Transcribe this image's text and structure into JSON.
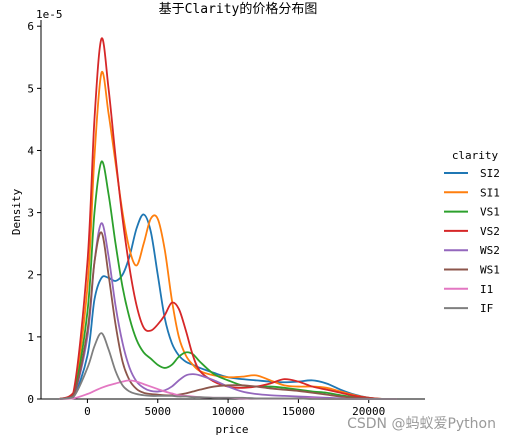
{
  "chart_data": {
    "type": "line",
    "title": "基于Clarity的价格分布图",
    "xlabel": "price",
    "ylabel": "Density",
    "y_scale_label": "1e-5",
    "x_ticks": [
      0,
      5000,
      10000,
      15000,
      20000
    ],
    "y_ticks": [
      0,
      1,
      2,
      3,
      4,
      5,
      6
    ],
    "xlim": [
      -3300,
      24000
    ],
    "ylim": [
      0,
      6.1
    ],
    "legend_title": "clarity",
    "legend_position": "right",
    "grid": false,
    "x": [
      -2000,
      -1000,
      0,
      500,
      1000,
      1500,
      2000,
      2500,
      3000,
      3500,
      4000,
      4500,
      5000,
      5500,
      6000,
      6500,
      7000,
      7500,
      8000,
      9000,
      10000,
      11000,
      12000,
      13000,
      14000,
      15000,
      16000,
      17000,
      18000,
      19000,
      20000,
      21000,
      22000
    ],
    "series": [
      {
        "name": "SI2",
        "color": "#1f77b4",
        "values": [
          0,
          0.04,
          0.7,
          1.6,
          1.95,
          1.95,
          1.9,
          2.0,
          2.3,
          2.75,
          2.97,
          2.7,
          2.0,
          1.3,
          0.9,
          0.7,
          0.6,
          0.55,
          0.5,
          0.42,
          0.35,
          0.32,
          0.3,
          0.28,
          0.27,
          0.28,
          0.3,
          0.25,
          0.15,
          0.07,
          0.02,
          0,
          0
        ]
      },
      {
        "name": "SI1",
        "color": "#ff7f0e",
        "values": [
          0,
          0.08,
          1.8,
          3.9,
          5.25,
          4.6,
          3.8,
          3.0,
          2.4,
          2.15,
          2.5,
          2.9,
          2.9,
          2.4,
          1.6,
          1.0,
          0.7,
          0.55,
          0.45,
          0.38,
          0.35,
          0.36,
          0.38,
          0.3,
          0.22,
          0.2,
          0.2,
          0.18,
          0.12,
          0.06,
          0.02,
          0,
          0
        ]
      },
      {
        "name": "VS1",
        "color": "#2ca02c",
        "values": [
          0,
          0.06,
          1.4,
          3.0,
          3.82,
          3.3,
          2.5,
          1.8,
          1.3,
          0.95,
          0.75,
          0.65,
          0.55,
          0.5,
          0.55,
          0.68,
          0.75,
          0.72,
          0.6,
          0.4,
          0.3,
          0.22,
          0.2,
          0.2,
          0.18,
          0.15,
          0.12,
          0.1,
          0.06,
          0.03,
          0.01,
          0,
          0
        ]
      },
      {
        "name": "VS2",
        "color": "#d62728",
        "values": [
          0,
          0.1,
          2.2,
          4.5,
          5.8,
          5.0,
          3.9,
          2.9,
          2.1,
          1.5,
          1.15,
          1.1,
          1.2,
          1.35,
          1.55,
          1.45,
          1.1,
          0.7,
          0.45,
          0.28,
          0.2,
          0.18,
          0.2,
          0.25,
          0.32,
          0.28,
          0.2,
          0.15,
          0.1,
          0.05,
          0.02,
          0,
          0
        ]
      },
      {
        "name": "WS2",
        "color": "#9467bd",
        "values": [
          0,
          0.05,
          1.0,
          2.2,
          2.83,
          2.3,
          1.5,
          0.9,
          0.5,
          0.28,
          0.18,
          0.13,
          0.12,
          0.14,
          0.2,
          0.3,
          0.38,
          0.4,
          0.38,
          0.3,
          0.2,
          0.12,
          0.08,
          0.06,
          0.05,
          0.04,
          0.03,
          0.02,
          0.01,
          0,
          0,
          0,
          0
        ]
      },
      {
        "name": "WS1",
        "color": "#8c564b",
        "values": [
          0,
          0.05,
          1.1,
          2.2,
          2.68,
          2.0,
          1.2,
          0.6,
          0.3,
          0.16,
          0.1,
          0.08,
          0.07,
          0.06,
          0.06,
          0.07,
          0.09,
          0.12,
          0.15,
          0.2,
          0.22,
          0.22,
          0.2,
          0.17,
          0.15,
          0.13,
          0.1,
          0.07,
          0.04,
          0.02,
          0.01,
          0,
          0
        ]
      },
      {
        "name": "I1",
        "color": "#e377c2",
        "values": [
          0,
          0.01,
          0.08,
          0.13,
          0.18,
          0.22,
          0.25,
          0.28,
          0.3,
          0.28,
          0.24,
          0.2,
          0.16,
          0.12,
          0.09,
          0.06,
          0.05,
          0.04,
          0.03,
          0.02,
          0.02,
          0.01,
          0.01,
          0.01,
          0.01,
          0.01,
          0.01,
          0,
          0,
          0,
          0,
          0,
          0
        ]
      },
      {
        "name": "IF",
        "color": "#7f7f7f",
        "values": [
          0,
          0.03,
          0.5,
          0.85,
          1.06,
          0.8,
          0.45,
          0.22,
          0.12,
          0.08,
          0.06,
          0.05,
          0.05,
          0.05,
          0.05,
          0.04,
          0.04,
          0.03,
          0.03,
          0.02,
          0.02,
          0.02,
          0.01,
          0.01,
          0.01,
          0.01,
          0,
          0,
          0,
          0,
          0,
          0,
          0
        ]
      }
    ]
  },
  "watermark": "CSDN @蚂蚁爱Python"
}
